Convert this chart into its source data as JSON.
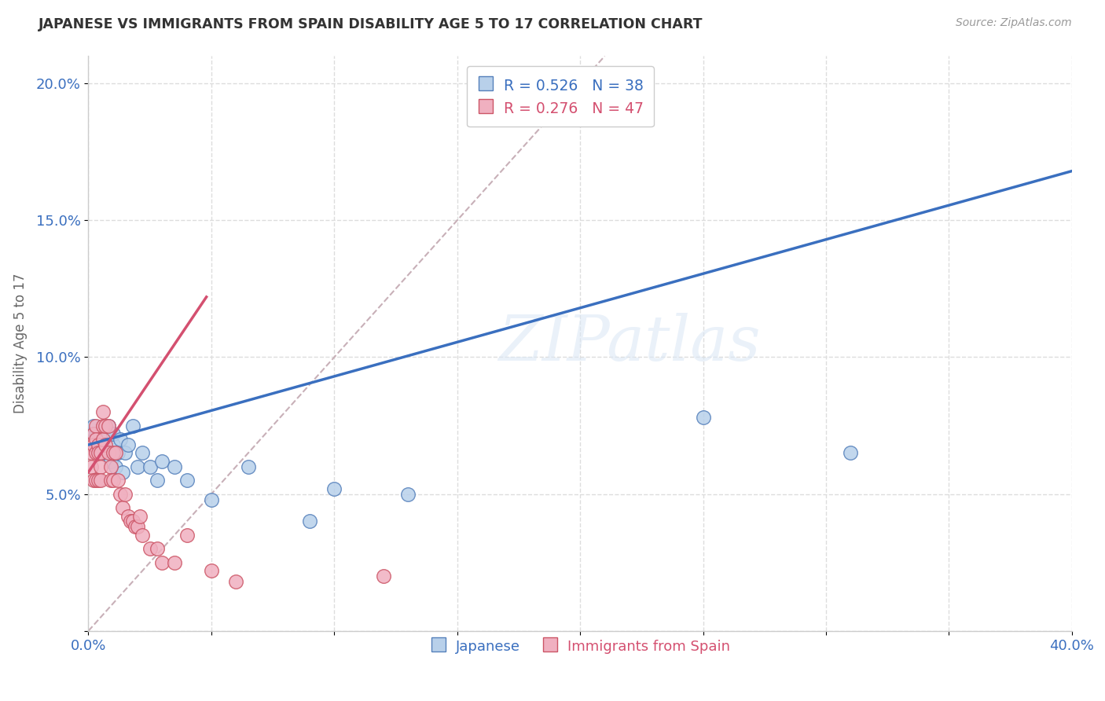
{
  "title": "JAPANESE VS IMMIGRANTS FROM SPAIN DISABILITY AGE 5 TO 17 CORRELATION CHART",
  "source": "Source: ZipAtlas.com",
  "ylabel": "Disability Age 5 to 17",
  "xlim": [
    0.0,
    0.4
  ],
  "ylim": [
    0.0,
    0.21
  ],
  "xticks": [
    0.0,
    0.05,
    0.1,
    0.15,
    0.2,
    0.25,
    0.3,
    0.35,
    0.4
  ],
  "yticks": [
    0.0,
    0.05,
    0.1,
    0.15,
    0.2
  ],
  "xtick_labels": [
    "0.0%",
    "",
    "",
    "",
    "",
    "",
    "",
    "",
    "40.0%"
  ],
  "ytick_labels": [
    "",
    "5.0%",
    "10.0%",
    "15.0%",
    "20.0%"
  ],
  "watermark": "ZIPatlas",
  "blue_line_color": "#3a6fbf",
  "pink_line_color": "#d45070",
  "diag_line_color": "#c8b0b8",
  "scatter_blue_face": "#b8d0ea",
  "scatter_blue_edge": "#5580bb",
  "scatter_pink_face": "#f0b0c0",
  "scatter_pink_edge": "#cc5566",
  "japanese_x": [
    0.001,
    0.001,
    0.002,
    0.002,
    0.003,
    0.003,
    0.004,
    0.004,
    0.005,
    0.005,
    0.006,
    0.007,
    0.007,
    0.008,
    0.009,
    0.01,
    0.01,
    0.011,
    0.012,
    0.013,
    0.014,
    0.015,
    0.016,
    0.018,
    0.02,
    0.022,
    0.025,
    0.028,
    0.03,
    0.035,
    0.04,
    0.05,
    0.065,
    0.09,
    0.1,
    0.13,
    0.25,
    0.31
  ],
  "japanese_y": [
    0.072,
    0.068,
    0.07,
    0.075,
    0.068,
    0.072,
    0.065,
    0.07,
    0.072,
    0.065,
    0.068,
    0.07,
    0.065,
    0.075,
    0.062,
    0.068,
    0.072,
    0.06,
    0.065,
    0.07,
    0.058,
    0.065,
    0.068,
    0.075,
    0.06,
    0.065,
    0.06,
    0.055,
    0.062,
    0.06,
    0.055,
    0.048,
    0.06,
    0.04,
    0.052,
    0.05,
    0.078,
    0.065
  ],
  "spain_x": [
    0.001,
    0.001,
    0.001,
    0.002,
    0.002,
    0.002,
    0.003,
    0.003,
    0.003,
    0.003,
    0.004,
    0.004,
    0.004,
    0.005,
    0.005,
    0.005,
    0.006,
    0.006,
    0.006,
    0.007,
    0.007,
    0.008,
    0.008,
    0.009,
    0.009,
    0.01,
    0.01,
    0.011,
    0.012,
    0.013,
    0.014,
    0.015,
    0.016,
    0.017,
    0.018,
    0.019,
    0.02,
    0.021,
    0.022,
    0.025,
    0.028,
    0.03,
    0.035,
    0.04,
    0.05,
    0.06,
    0.12
  ],
  "spain_y": [
    0.068,
    0.065,
    0.06,
    0.072,
    0.068,
    0.055,
    0.075,
    0.07,
    0.065,
    0.055,
    0.068,
    0.065,
    0.055,
    0.065,
    0.06,
    0.055,
    0.08,
    0.075,
    0.07,
    0.075,
    0.068,
    0.075,
    0.065,
    0.06,
    0.055,
    0.065,
    0.055,
    0.065,
    0.055,
    0.05,
    0.045,
    0.05,
    0.042,
    0.04,
    0.04,
    0.038,
    0.038,
    0.042,
    0.035,
    0.03,
    0.03,
    0.025,
    0.025,
    0.035,
    0.022,
    0.018,
    0.02
  ],
  "blue_line_x0": 0.0,
  "blue_line_x1": 0.4,
  "blue_line_y0": 0.068,
  "blue_line_y1": 0.168,
  "pink_line_x0": 0.0,
  "pink_line_x1": 0.048,
  "pink_line_y0": 0.058,
  "pink_line_y1": 0.122
}
